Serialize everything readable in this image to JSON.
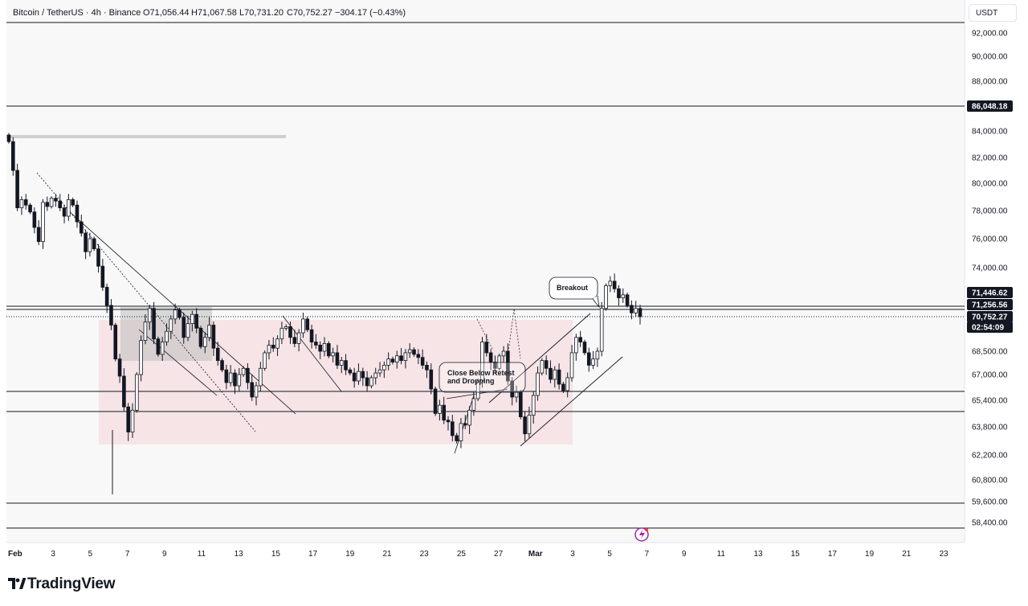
{
  "header": {
    "symbol": "Bitcoin / TetherUS · 4h · Binance",
    "open": "O71,056.44",
    "high": "H71,067.58",
    "low": "L70,731.20",
    "close": "C70,752.27",
    "change": "−304.17 (−0.43%)"
  },
  "currency_button": "USDT",
  "logo": "TradingView",
  "colors": {
    "candle": "#131722",
    "zone": "#f5dde0",
    "box": "#cfcfcf",
    "grid_bg": "#f8f8f8",
    "alert": "#9c27b0"
  },
  "chart_data": {
    "type": "candlestick",
    "x_ticks": [
      "Feb",
      "3",
      "5",
      "7",
      "9",
      "11",
      "13",
      "15",
      "17",
      "19",
      "21",
      "23",
      "25",
      "27",
      "Mar",
      "3",
      "5",
      "7",
      "9",
      "11",
      "13",
      "15",
      "17",
      "19",
      "21",
      "23"
    ],
    "y_ticks": [
      "92,000.00",
      "90,000.00",
      "88,000.00",
      "86,048.18",
      "84,000.00",
      "82,000.00",
      "80,000.00",
      "78,000.00",
      "76,000.00",
      "74,000.00",
      "71,446.62",
      "71,256.56",
      "70,752.27",
      "02:54:09",
      "68,500.00",
      "67,000.00",
      "65,400.00",
      "63,800.00",
      "62,200.00",
      "60,800.00",
      "59,600.00",
      "58,400.00"
    ],
    "horizontal_levels": [
      86048.18,
      71446.62,
      71256.56,
      65800,
      64400,
      59600,
      58200
    ],
    "countdown": "02:54:09",
    "annotations": [
      "Breakout",
      "Close Below Retest\nand Dropping"
    ],
    "closes": [
      83200,
      81000,
      78200,
      78800,
      78400,
      77900,
      76800,
      75800,
      78600,
      78300,
      78900,
      78700,
      78200,
      77600,
      78800,
      78400,
      77200,
      76400,
      75100,
      76000,
      75300,
      74100,
      72700,
      71500,
      70200,
      68000,
      66900,
      65000,
      63500,
      64800,
      67000,
      69200,
      70400,
      71300,
      69300,
      68300,
      69100,
      69800,
      70600,
      71200,
      70700,
      69400,
      70300,
      70900,
      70000,
      68800,
      69400,
      70200,
      68700,
      67900,
      67300,
      66500,
      67100,
      66300,
      67000,
      67400,
      66500,
      65600,
      66300,
      67400,
      68400,
      68900,
      68700,
      69300,
      70000,
      70100,
      69400,
      69000,
      69700,
      70600,
      69900,
      69100,
      68900,
      68500,
      69000,
      68200,
      68400,
      67600,
      67900,
      67300,
      67100,
      66600,
      67200,
      66800,
      66300,
      66800,
      67100,
      67300,
      67600,
      68000,
      67800,
      68200,
      67900,
      68400,
      68600,
      68300,
      68100,
      67600,
      67300,
      66100,
      64600,
      65100,
      64200,
      64100,
      63300,
      63000,
      64000,
      63900,
      64800,
      65500,
      66600,
      69100,
      68400,
      67800,
      67400,
      68200,
      68500,
      66600,
      65600,
      65900,
      64400,
      63400,
      64500,
      65700,
      67100,
      67900,
      67400,
      66700,
      67300,
      66400,
      66000,
      66800,
      68400,
      69400,
      69100,
      68400,
      67600,
      68000,
      68500,
      71300,
      72800,
      73100,
      72600,
      72000,
      72200,
      71500,
      71000,
      71300,
      70752
    ]
  }
}
